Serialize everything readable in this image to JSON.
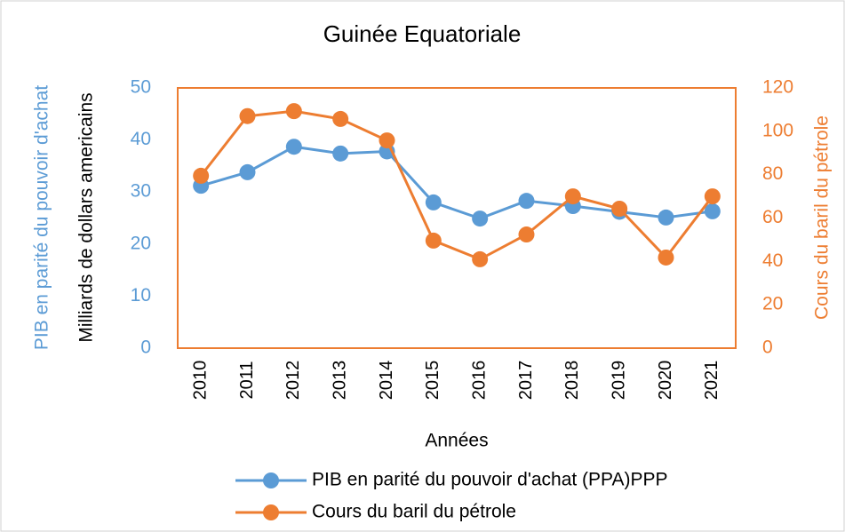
{
  "chart_data": {
    "type": "line",
    "title": "Guinée Equatoriale",
    "ylabel": "PIB en parité du pouvoir d'achat",
    "ylabel_unit": "Milliards de dollars americains",
    "y2label": "Cours du baril du pétrole",
    "xlabel": "Années",
    "categories": [
      "2010",
      "2011",
      "2012",
      "2013",
      "2014",
      "2015",
      "2016",
      "2017",
      "2018",
      "2019",
      "2020",
      "2021"
    ],
    "series": [
      {
        "name": "PIB  en parité du pouvoir d'achat (PPA)PPP",
        "color": "#5B9BD5",
        "values": [
          31.2,
          33.8,
          38.7,
          37.4,
          37.8,
          28.0,
          24.9,
          28.3,
          27.3,
          26.2,
          25.1,
          26.3
        ]
      },
      {
        "name": "Cours du baril du pétrole",
        "color": "#ED7D31",
        "axis": "y2",
        "values": [
          79.5,
          107,
          109.3,
          105.7,
          95.8,
          49.6,
          41,
          52.4,
          70,
          64.3,
          41.8,
          70
        ]
      }
    ],
    "ylim": [
      0,
      50
    ],
    "yticks": [
      0,
      10,
      20,
      30,
      40,
      50
    ],
    "y2lim": [
      0,
      120
    ],
    "y2ticks": [
      0,
      20,
      40,
      60,
      80,
      100,
      120
    ],
    "frame_color": "#ED7D31",
    "ytick_color": "#5B9BD5",
    "y2tick_color": "#ED7D31"
  }
}
